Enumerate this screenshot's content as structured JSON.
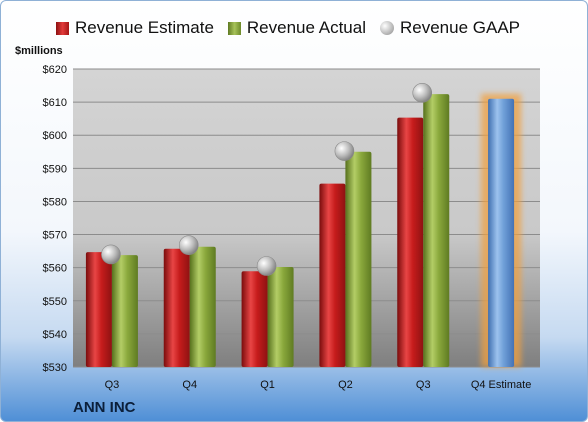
{
  "legend": {
    "estimate": "Revenue Estimate",
    "actual": "Revenue Actual",
    "gaap": "Revenue GAAP"
  },
  "company": "ANN INC",
  "chart_data": {
    "type": "bar",
    "ylabel": "$millions",
    "ylim": [
      530,
      620
    ],
    "yticks": [
      "$530",
      "$540",
      "$550",
      "$560",
      "$570",
      "$580",
      "$590",
      "$600",
      "$610",
      "$620"
    ],
    "ytick_values": [
      530,
      540,
      550,
      560,
      570,
      580,
      590,
      600,
      610,
      620
    ],
    "categories": [
      "Q3",
      "Q4",
      "Q1",
      "Q2",
      "Q3",
      "Q4 Estimate"
    ],
    "grid": true,
    "legend_position": "top",
    "series": [
      {
        "name": "Revenue Estimate",
        "values": [
          564.7,
          565.7,
          558.9,
          585.4,
          605.3,
          null
        ],
        "color": "#c81e1e"
      },
      {
        "name": "Revenue Actual",
        "values": [
          563.8,
          566.3,
          560.2,
          595.0,
          612.4,
          null
        ],
        "color": "#8aab3e"
      },
      {
        "name": "Revenue GAAP",
        "values": [
          564.0,
          566.8,
          560.5,
          595.2,
          612.8,
          null
        ],
        "color": "#b0b0b0"
      }
    ],
    "forecast": {
      "category": "Q4 Estimate",
      "value": 611.0,
      "color": "#6f9fd8",
      "highlight": "#f0a040"
    }
  }
}
